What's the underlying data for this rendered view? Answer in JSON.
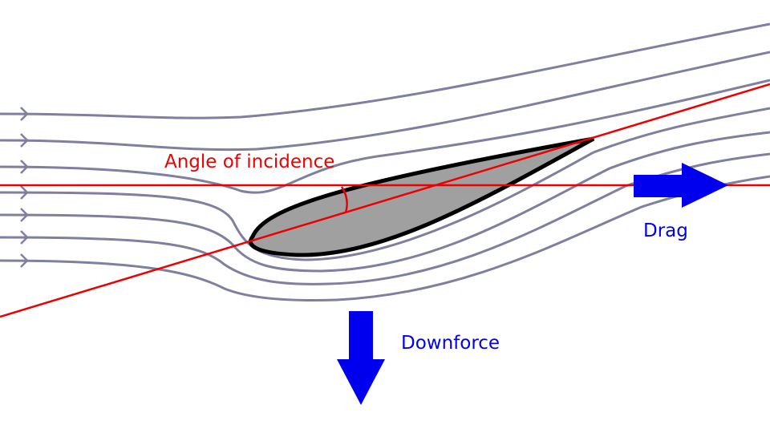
{
  "labels": {
    "angle": "Angle of incidence",
    "drag": "Drag",
    "downforce": "Downforce"
  }
}
